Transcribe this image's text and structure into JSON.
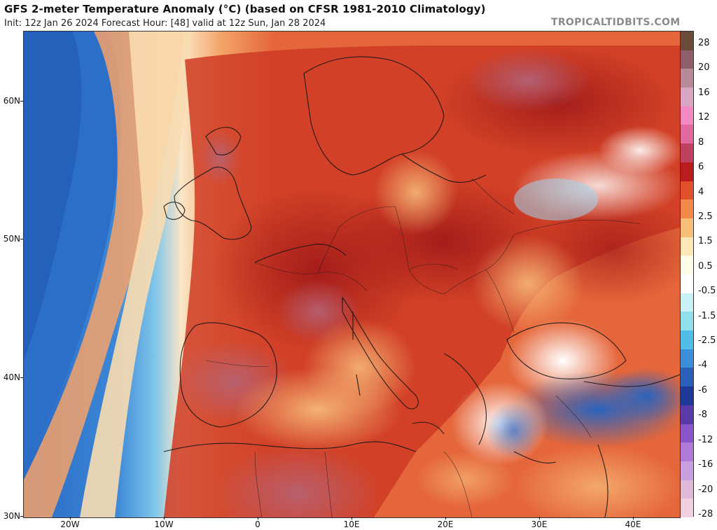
{
  "header": {
    "title": "GFS 2-meter Temperature Anomaly (°C) (based on CFSR 1981-2010 Climatology)",
    "subtitle": "Init: 12z Jan 26 2024   Forecast Hour: [48]   valid at 12z Sun, Jan 28 2024",
    "brand": "TROPICALTIDBITS.COM"
  },
  "map": {
    "latitudes": [
      "60N",
      "50N",
      "40N",
      "30N"
    ],
    "longitudes": [
      "20W",
      "10W",
      "0",
      "10E",
      "20E",
      "30E",
      "40E"
    ]
  },
  "colorbar": {
    "labels": [
      "28",
      "20",
      "16",
      "12",
      "8",
      "6",
      "4",
      "2.5",
      "1.5",
      "0.5",
      "-0.5",
      "-1.5",
      "-2.5",
      "-4",
      "-6",
      "-8",
      "-12",
      "-16",
      "-20",
      "-28"
    ],
    "colors": [
      "#6b4a3a",
      "#8e5f6a",
      "#b88a98",
      "#d8a6c4",
      "#f08ac0",
      "#e06aa0",
      "#c0405f",
      "#b81c1c",
      "#e0502a",
      "#f28a4a",
      "#f8bf7a",
      "#fde6b8",
      "#fffbe9",
      "#ffffff",
      "#c8f2f5",
      "#8fe0ec",
      "#52bde8",
      "#3a8fd8",
      "#2a60b8",
      "#1c3a96",
      "#5a3aa8",
      "#8a55c8",
      "#b07ad8",
      "#c8a0e0",
      "#e0b8d8",
      "#f0d0e0"
    ]
  }
}
